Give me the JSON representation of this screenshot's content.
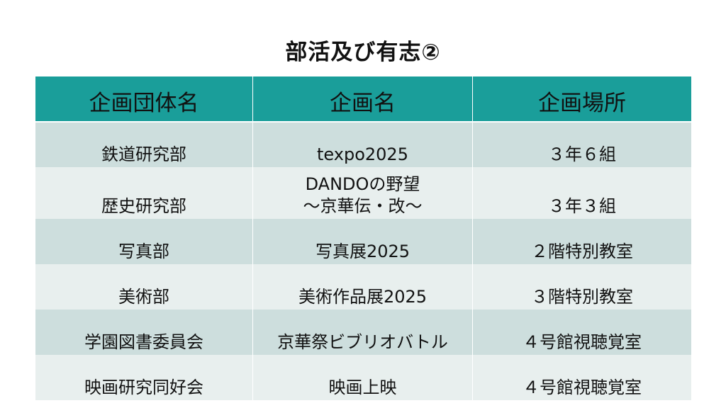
{
  "title": "部活及び有志②",
  "table": {
    "headers": [
      "企画団体名",
      "企画名",
      "企画場所"
    ],
    "rows": [
      {
        "group": "鉄道研究部",
        "project": [
          "texpo2025"
        ],
        "place": "３年６組"
      },
      {
        "group": "歴史研究部",
        "project": [
          "DANDOの野望",
          "～京華伝・改～"
        ],
        "place": "３年３組"
      },
      {
        "group": "写真部",
        "project": [
          "写真展2025"
        ],
        "place": "２階特別教室"
      },
      {
        "group": "美術部",
        "project": [
          "美術作品展2025"
        ],
        "place": "３階特別教室"
      },
      {
        "group": "学園図書委員会",
        "project": [
          "京華祭ビブリオバトル"
        ],
        "place": "４号館視聴覚室"
      },
      {
        "group": "映画研究同好会",
        "project": [
          "映画上映"
        ],
        "place": "４号館視聴覚室"
      }
    ]
  },
  "colors": {
    "header_bg": "#1a9e9a",
    "row_band_dark": "#cddedd",
    "row_band_light": "#e8efee"
  }
}
